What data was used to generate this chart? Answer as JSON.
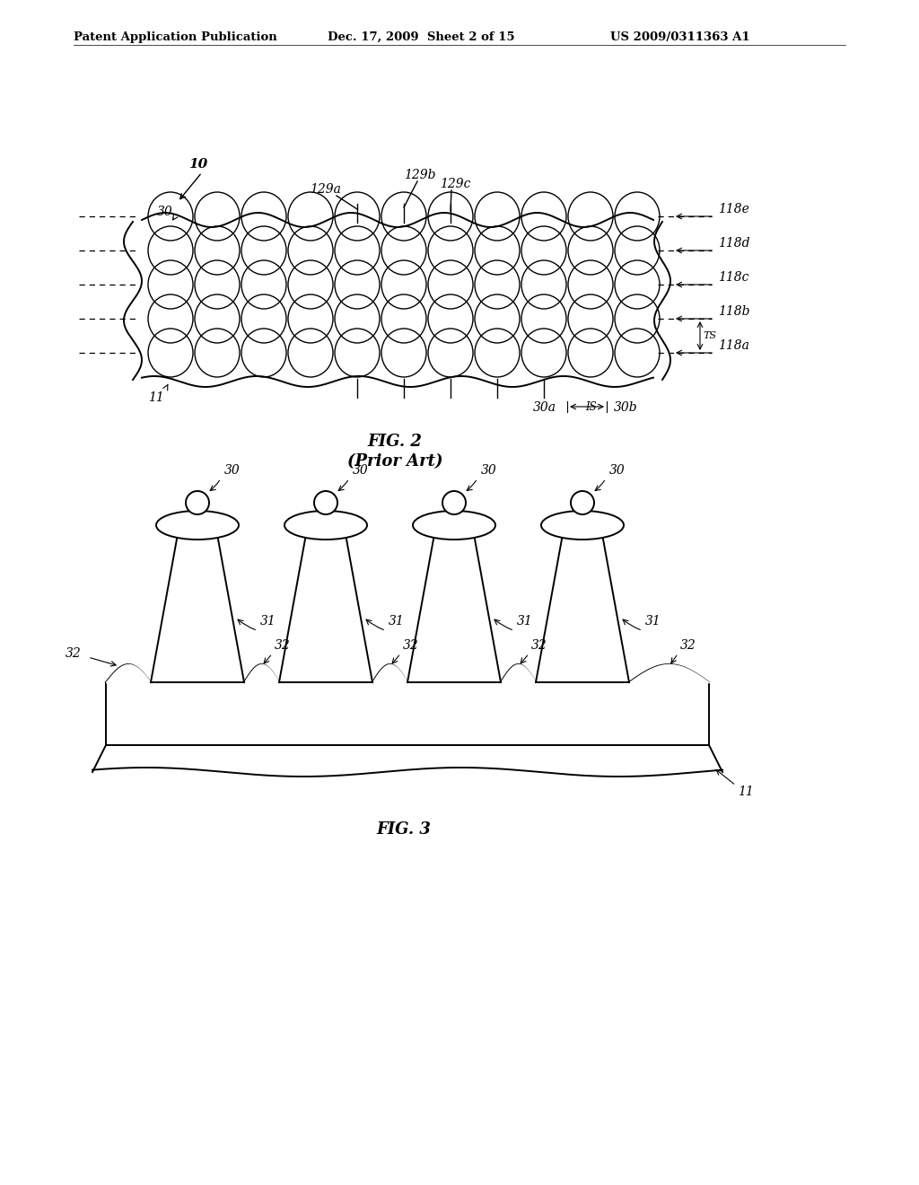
{
  "bg_color": "#ffffff",
  "header_text": "Patent Application Publication",
  "header_date": "Dec. 17, 2009  Sheet 2 of 15",
  "header_patent": "US 2009/0311363 A1",
  "fig2_caption": "FIG. 2",
  "fig2_subcaption": "(Prior Art)",
  "fig3_caption": "FIG. 3",
  "lw": 1.4,
  "lw_thin": 1.0,
  "lw_dash": 0.9
}
